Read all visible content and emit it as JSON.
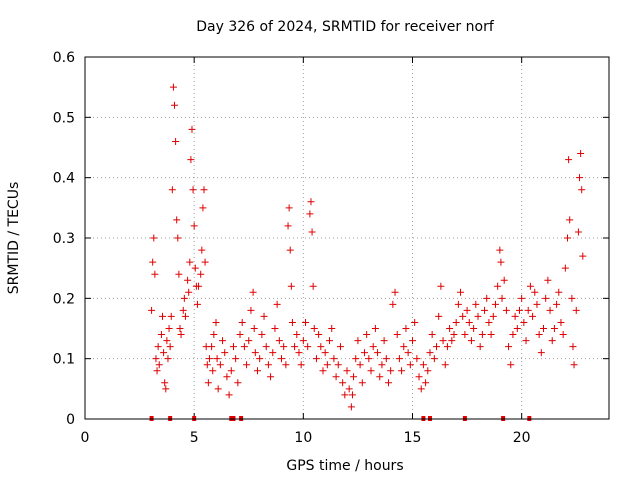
{
  "chart_data": {
    "type": "scatter",
    "title": "Day 326 of 2024, SRMTID for receiver norf",
    "xlabel": "GPS time / hours",
    "ylabel": "SRMTID / TECUs",
    "xlim": [
      0,
      24
    ],
    "ylim": [
      0,
      0.6
    ],
    "xticks": [
      0,
      5,
      10,
      15,
      20
    ],
    "xtick_labels": [
      "0",
      "5",
      "10",
      "15",
      "20"
    ],
    "yticks": [
      0,
      0.1,
      0.2,
      0.3,
      0.4,
      0.5,
      0.6
    ],
    "ytick_labels": [
      "0",
      "0.1",
      "0.2",
      "0.3",
      "0.4",
      "0.5",
      "0.6"
    ],
    "grid": true,
    "marker": "plus",
    "color": "#e00000",
    "series": [
      {
        "name": "SRMTID",
        "points": [
          [
            3.05,
            0.18
          ],
          [
            3.1,
            0.26
          ],
          [
            3.15,
            0.3
          ],
          [
            3.2,
            0.24
          ],
          [
            3.25,
            0.1
          ],
          [
            3.3,
            0.08
          ],
          [
            3.35,
            0.12
          ],
          [
            3.4,
            0.09
          ],
          [
            3.5,
            0.14
          ],
          [
            3.55,
            0.17
          ],
          [
            3.6,
            0.11
          ],
          [
            3.65,
            0.06
          ],
          [
            3.7,
            0.05
          ],
          [
            3.75,
            0.13
          ],
          [
            3.8,
            0.1
          ],
          [
            3.85,
            0.15
          ],
          [
            3.9,
            0.12
          ],
          [
            3.95,
            0.17
          ],
          [
            4.0,
            0.38
          ],
          [
            4.05,
            0.55
          ],
          [
            4.1,
            0.52
          ],
          [
            4.15,
            0.46
          ],
          [
            4.2,
            0.33
          ],
          [
            4.25,
            0.3
          ],
          [
            4.3,
            0.24
          ],
          [
            4.35,
            0.15
          ],
          [
            4.4,
            0.14
          ],
          [
            4.5,
            0.18
          ],
          [
            4.55,
            0.2
          ],
          [
            4.6,
            0.17
          ],
          [
            4.7,
            0.23
          ],
          [
            4.75,
            0.21
          ],
          [
            4.8,
            0.26
          ],
          [
            4.85,
            0.43
          ],
          [
            4.9,
            0.48
          ],
          [
            4.95,
            0.38
          ],
          [
            5.0,
            0.32
          ],
          [
            5.05,
            0.25
          ],
          [
            5.1,
            0.22
          ],
          [
            5.15,
            0.19
          ],
          [
            5.2,
            0.22
          ],
          [
            5.3,
            0.24
          ],
          [
            5.35,
            0.28
          ],
          [
            5.4,
            0.35
          ],
          [
            5.45,
            0.38
          ],
          [
            5.5,
            0.26
          ],
          [
            5.55,
            0.12
          ],
          [
            5.6,
            0.09
          ],
          [
            5.65,
            0.06
          ],
          [
            5.7,
            0.1
          ],
          [
            5.8,
            0.12
          ],
          [
            5.85,
            0.08
          ],
          [
            5.9,
            0.14
          ],
          [
            6.0,
            0.16
          ],
          [
            6.05,
            0.1
          ],
          [
            6.1,
            0.05
          ],
          [
            6.2,
            0.09
          ],
          [
            6.3,
            0.13
          ],
          [
            6.4,
            0.11
          ],
          [
            6.5,
            0.07
          ],
          [
            6.6,
            0.04
          ],
          [
            6.7,
            0.08
          ],
          [
            6.8,
            0.12
          ],
          [
            6.9,
            0.1
          ],
          [
            7.0,
            0.06
          ],
          [
            7.1,
            0.14
          ],
          [
            7.2,
            0.16
          ],
          [
            7.3,
            0.12
          ],
          [
            7.4,
            0.09
          ],
          [
            7.5,
            0.13
          ],
          [
            7.6,
            0.18
          ],
          [
            7.7,
            0.21
          ],
          [
            7.75,
            0.15
          ],
          [
            7.8,
            0.11
          ],
          [
            7.9,
            0.08
          ],
          [
            8.0,
            0.1
          ],
          [
            8.1,
            0.14
          ],
          [
            8.2,
            0.17
          ],
          [
            8.3,
            0.12
          ],
          [
            8.4,
            0.09
          ],
          [
            8.5,
            0.07
          ],
          [
            8.6,
            0.11
          ],
          [
            8.7,
            0.15
          ],
          [
            8.8,
            0.19
          ],
          [
            8.9,
            0.13
          ],
          [
            9.0,
            0.1
          ],
          [
            9.1,
            0.12
          ],
          [
            9.2,
            0.09
          ],
          [
            9.3,
            0.32
          ],
          [
            9.35,
            0.35
          ],
          [
            9.4,
            0.28
          ],
          [
            9.45,
            0.22
          ],
          [
            9.5,
            0.16
          ],
          [
            9.6,
            0.12
          ],
          [
            9.7,
            0.14
          ],
          [
            9.8,
            0.11
          ],
          [
            9.9,
            0.09
          ],
          [
            10.0,
            0.13
          ],
          [
            10.1,
            0.16
          ],
          [
            10.2,
            0.12
          ],
          [
            10.3,
            0.34
          ],
          [
            10.35,
            0.36
          ],
          [
            10.4,
            0.31
          ],
          [
            10.45,
            0.22
          ],
          [
            10.5,
            0.15
          ],
          [
            10.6,
            0.1
          ],
          [
            10.7,
            0.14
          ],
          [
            10.8,
            0.12
          ],
          [
            10.9,
            0.08
          ],
          [
            11.0,
            0.11
          ],
          [
            11.1,
            0.09
          ],
          [
            11.2,
            0.13
          ],
          [
            11.3,
            0.15
          ],
          [
            11.4,
            0.1
          ],
          [
            11.5,
            0.07
          ],
          [
            11.6,
            0.09
          ],
          [
            11.7,
            0.12
          ],
          [
            11.8,
            0.06
          ],
          [
            11.9,
            0.04
          ],
          [
            12.0,
            0.08
          ],
          [
            12.1,
            0.05
          ],
          [
            12.2,
            0.02
          ],
          [
            12.25,
            0.04
          ],
          [
            12.3,
            0.07
          ],
          [
            12.4,
            0.1
          ],
          [
            12.5,
            0.13
          ],
          [
            12.6,
            0.09
          ],
          [
            12.7,
            0.06
          ],
          [
            12.8,
            0.11
          ],
          [
            12.9,
            0.14
          ],
          [
            13.0,
            0.1
          ],
          [
            13.1,
            0.08
          ],
          [
            13.2,
            0.12
          ],
          [
            13.3,
            0.15
          ],
          [
            13.4,
            0.11
          ],
          [
            13.5,
            0.07
          ],
          [
            13.6,
            0.09
          ],
          [
            13.7,
            0.13
          ],
          [
            13.8,
            0.1
          ],
          [
            13.9,
            0.06
          ],
          [
            14.0,
            0.08
          ],
          [
            14.1,
            0.19
          ],
          [
            14.2,
            0.21
          ],
          [
            14.3,
            0.14
          ],
          [
            14.4,
            0.1
          ],
          [
            14.5,
            0.08
          ],
          [
            14.6,
            0.12
          ],
          [
            14.7,
            0.15
          ],
          [
            14.8,
            0.11
          ],
          [
            14.9,
            0.09
          ],
          [
            15.0,
            0.13
          ],
          [
            15.1,
            0.16
          ],
          [
            15.2,
            0.1
          ],
          [
            15.3,
            0.07
          ],
          [
            15.4,
            0.05
          ],
          [
            15.5,
            0.09
          ],
          [
            15.6,
            0.06
          ],
          [
            15.7,
            0.08
          ],
          [
            15.8,
            0.11
          ],
          [
            15.9,
            0.14
          ],
          [
            16.0,
            0.1
          ],
          [
            16.1,
            0.12
          ],
          [
            16.2,
            0.17
          ],
          [
            16.3,
            0.22
          ],
          [
            16.4,
            0.13
          ],
          [
            16.5,
            0.09
          ],
          [
            16.6,
            0.12
          ],
          [
            16.7,
            0.15
          ],
          [
            16.8,
            0.13
          ],
          [
            16.9,
            0.14
          ],
          [
            17.0,
            0.16
          ],
          [
            17.1,
            0.19
          ],
          [
            17.2,
            0.21
          ],
          [
            17.3,
            0.17
          ],
          [
            17.4,
            0.14
          ],
          [
            17.5,
            0.18
          ],
          [
            17.6,
            0.16
          ],
          [
            17.7,
            0.13
          ],
          [
            17.8,
            0.15
          ],
          [
            17.9,
            0.19
          ],
          [
            18.0,
            0.17
          ],
          [
            18.1,
            0.12
          ],
          [
            18.2,
            0.14
          ],
          [
            18.3,
            0.18
          ],
          [
            18.4,
            0.2
          ],
          [
            18.5,
            0.16
          ],
          [
            18.6,
            0.14
          ],
          [
            18.7,
            0.17
          ],
          [
            18.8,
            0.19
          ],
          [
            18.9,
            0.22
          ],
          [
            19.0,
            0.28
          ],
          [
            19.05,
            0.26
          ],
          [
            19.1,
            0.2
          ],
          [
            19.2,
            0.23
          ],
          [
            19.3,
            0.18
          ],
          [
            19.4,
            0.12
          ],
          [
            19.5,
            0.09
          ],
          [
            19.6,
            0.14
          ],
          [
            19.7,
            0.17
          ],
          [
            19.8,
            0.15
          ],
          [
            19.9,
            0.18
          ],
          [
            20.0,
            0.2
          ],
          [
            20.1,
            0.16
          ],
          [
            20.2,
            0.13
          ],
          [
            20.3,
            0.18
          ],
          [
            20.4,
            0.22
          ],
          [
            20.5,
            0.17
          ],
          [
            20.6,
            0.21
          ],
          [
            20.7,
            0.19
          ],
          [
            20.8,
            0.14
          ],
          [
            20.9,
            0.11
          ],
          [
            21.0,
            0.15
          ],
          [
            21.1,
            0.2
          ],
          [
            21.2,
            0.23
          ],
          [
            21.3,
            0.18
          ],
          [
            21.4,
            0.13
          ],
          [
            21.5,
            0.15
          ],
          [
            21.6,
            0.19
          ],
          [
            21.7,
            0.21
          ],
          [
            21.8,
            0.16
          ],
          [
            21.9,
            0.14
          ],
          [
            22.0,
            0.25
          ],
          [
            22.1,
            0.3
          ],
          [
            22.15,
            0.43
          ],
          [
            22.2,
            0.33
          ],
          [
            22.3,
            0.2
          ],
          [
            22.35,
            0.12
          ],
          [
            22.4,
            0.09
          ],
          [
            22.5,
            0.18
          ],
          [
            22.6,
            0.31
          ],
          [
            22.65,
            0.4
          ],
          [
            22.7,
            0.44
          ],
          [
            22.75,
            0.38
          ],
          [
            22.8,
            0.27
          ]
        ]
      }
    ],
    "baseline_markers_x": [
      3.05,
      3.9,
      5.0,
      6.7,
      6.8,
      7.15,
      15.5,
      15.8,
      17.4,
      19.15,
      20.35
    ]
  }
}
